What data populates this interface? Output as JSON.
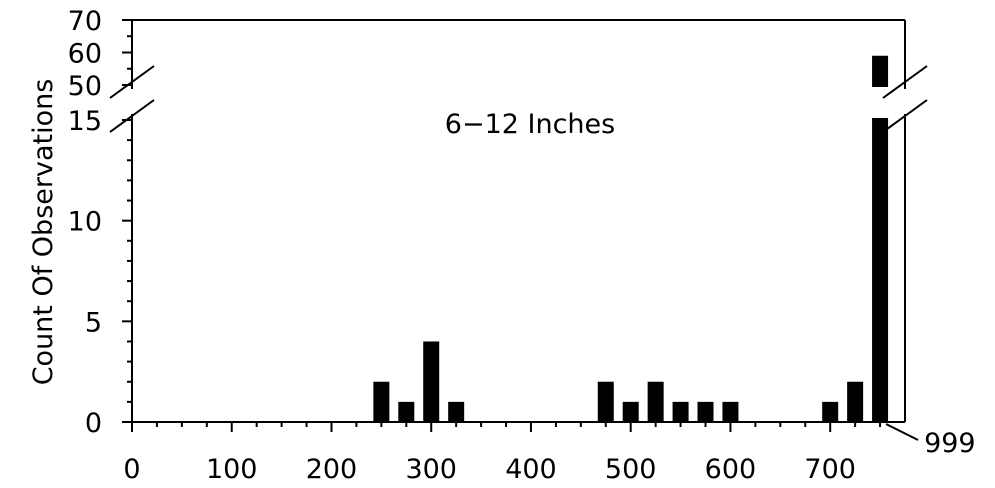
{
  "chart_data": {
    "type": "bar",
    "title": "",
    "annotation": "6−12 Inches",
    "ylabel": "Count Of Observations",
    "xlabel": "",
    "x_ticks": [
      0,
      100,
      200,
      300,
      400,
      500,
      600,
      700
    ],
    "x_tick_labels": [
      "0",
      "100",
      "200",
      "300",
      "400",
      "500",
      "600",
      "700"
    ],
    "y_ticks_lower": [
      0,
      5,
      10,
      15
    ],
    "y_tick_labels_lower": [
      "0",
      "5",
      "10",
      "15"
    ],
    "y_ticks_upper": [
      50,
      60,
      70
    ],
    "y_tick_labels_upper": [
      "50",
      "60",
      "70"
    ],
    "xlim": [
      0,
      775
    ],
    "ylim_lower": [
      0,
      15
    ],
    "ylim_upper": [
      50,
      70
    ],
    "axis_break": true,
    "grid": false,
    "special_bar_label": "999",
    "categories": [
      250,
      275,
      300,
      325,
      475,
      500,
      525,
      550,
      575,
      600,
      700,
      725,
      999
    ],
    "values": [
      2,
      1,
      4,
      1,
      2,
      1,
      2,
      1,
      1,
      1,
      1,
      2,
      59
    ]
  }
}
